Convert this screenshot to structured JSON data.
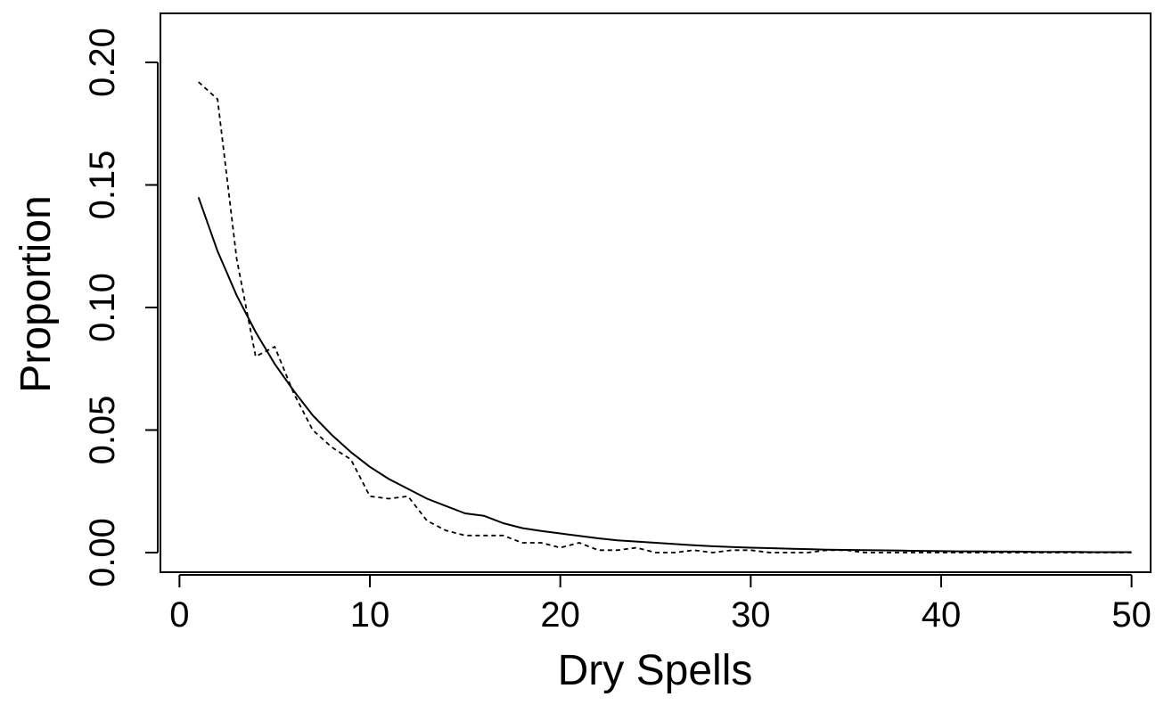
{
  "chart_data": {
    "type": "line",
    "xlabel": "Dry Spells",
    "ylabel": "Proportion",
    "xlim": [
      -1,
      51
    ],
    "ylim": [
      -0.008,
      0.22
    ],
    "xticks": [
      "0",
      "10",
      "20",
      "30",
      "40",
      "50"
    ],
    "yticks": [
      "0.00",
      "0.05",
      "0.10",
      "0.15",
      "0.20"
    ],
    "grid": false,
    "legend": "none",
    "series": [
      {
        "style": "solid",
        "color": "#000000",
        "x": [
          1,
          2,
          3,
          4,
          5,
          6,
          7,
          8,
          9,
          10,
          11,
          12,
          13,
          14,
          15,
          16,
          17,
          18,
          19,
          20,
          21,
          22,
          23,
          24,
          25,
          26,
          27,
          28,
          29,
          30,
          31,
          32,
          33,
          34,
          35,
          36,
          37,
          38,
          39,
          40,
          41,
          42,
          43,
          44,
          45,
          46,
          47,
          48,
          49,
          50
        ],
        "values": [
          0.145,
          0.123,
          0.105,
          0.09,
          0.077,
          0.066,
          0.056,
          0.048,
          0.041,
          0.035,
          0.03,
          0.026,
          0.022,
          0.019,
          0.016,
          0.015,
          0.012,
          0.01,
          0.0088,
          0.0078,
          0.0068,
          0.0058,
          0.005,
          0.0045,
          0.004,
          0.0035,
          0.003,
          0.0026,
          0.0023,
          0.002,
          0.0018,
          0.0016,
          0.0014,
          0.0012,
          0.0011,
          0.001,
          0.0009,
          0.0008,
          0.0007,
          0.0006,
          0.0005,
          0.0005,
          0.0004,
          0.0004,
          0.0003,
          0.0003,
          0.0003,
          0.0002,
          0.0002,
          0.0002
        ]
      },
      {
        "style": "dashed",
        "color": "#000000",
        "x": [
          1,
          2,
          3,
          4,
          5,
          6,
          7,
          8,
          9,
          10,
          11,
          12,
          13,
          14,
          15,
          16,
          17,
          18,
          19,
          20,
          21,
          22,
          23,
          24,
          25,
          26,
          27,
          28,
          29,
          30,
          31,
          32,
          33,
          34,
          35,
          36,
          37,
          38,
          39,
          40,
          41,
          42,
          43,
          44,
          45,
          46,
          47,
          48,
          49,
          50
        ],
        "values": [
          0.192,
          0.185,
          0.12,
          0.08,
          0.084,
          0.065,
          0.05,
          0.043,
          0.038,
          0.023,
          0.022,
          0.023,
          0.013,
          0.009,
          0.007,
          0.007,
          0.007,
          0.004,
          0.004,
          0.002,
          0.004,
          0.001,
          0.001,
          0.002,
          0.0,
          0.0,
          0.001,
          0.0,
          0.001,
          0.001,
          0.0,
          0.0,
          0.0,
          0.001,
          0.001,
          0.0,
          0.0,
          0.0,
          0.0,
          0.0,
          0.0,
          0.0,
          0.0,
          0.0,
          0.0,
          0.0,
          0.0,
          0.0,
          0.0,
          0.0
        ]
      }
    ]
  }
}
